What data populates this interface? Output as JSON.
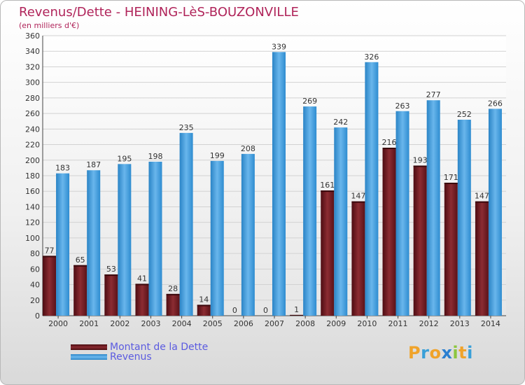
{
  "header": {
    "title": "Revenus/Dette - HEINING-LèS-BOUZONVILLE",
    "subtitle": "(en milliers d'€)"
  },
  "chart_data": {
    "type": "bar",
    "title": "Revenus/Dette - HEINING-LèS-BOUZONVILLE",
    "subtitle": "(en milliers d'€)",
    "categories": [
      "2000",
      "2001",
      "2002",
      "2003",
      "2004",
      "2005",
      "2006",
      "2007",
      "2008",
      "2009",
      "2010",
      "2011",
      "2012",
      "2013",
      "2014"
    ],
    "series": [
      {
        "name": "Montant de la Dette",
        "color": "#7a1e24",
        "values": [
          77,
          65,
          53,
          41,
          28,
          14,
          0,
          0,
          1,
          161,
          147,
          216,
          193,
          171,
          147
        ]
      },
      {
        "name": "Revenus",
        "color": "#4aa3e4",
        "values": [
          183,
          187,
          195,
          198,
          235,
          199,
          208,
          339,
          269,
          242,
          326,
          263,
          277,
          252,
          266
        ]
      }
    ],
    "ylim": [
      0,
      360
    ],
    "yticks": [
      0,
      20,
      40,
      60,
      80,
      100,
      120,
      140,
      160,
      180,
      200,
      220,
      240,
      260,
      280,
      300,
      320,
      340,
      360
    ],
    "grid": true,
    "legend_position": "bottom-left"
  },
  "legend": [
    {
      "label": "Montant de la Dette",
      "color": "#7a1e24"
    },
    {
      "label": "Revenus",
      "color": "#4aa3e4"
    }
  ],
  "logo": {
    "letters": [
      "P",
      "r",
      "o",
      "x",
      "i",
      "t",
      "i"
    ],
    "colors": [
      "#f0a32a",
      "#3aa0d8",
      "#f0a32a",
      "#2a7fd0",
      "#8cc63f",
      "#f0a32a",
      "#3aa0d8"
    ]
  }
}
